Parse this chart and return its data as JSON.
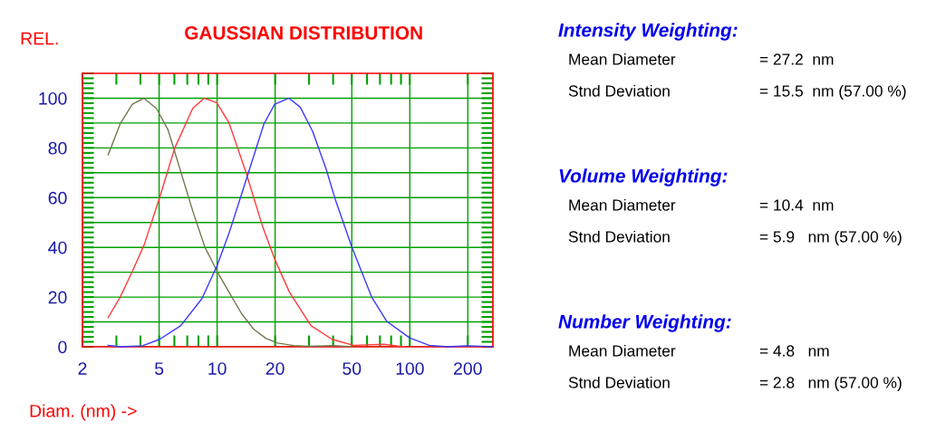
{
  "chart_data": [
    {
      "type": "line",
      "title": "GAUSSIAN DISTRIBUTION",
      "ylabel": "REL.",
      "xlabel": "Diam. (nm) ->",
      "log": "x",
      "grid": true,
      "marker": "none",
      "line_style": "solid",
      "xlim": [
        2,
        270
      ],
      "xticks": [
        2,
        5,
        10,
        20,
        50,
        100,
        200
      ],
      "ylim": [
        0,
        110
      ],
      "yticks": [
        0,
        {
          "value": 10,
          "label": null
        },
        20,
        {
          "value": 30,
          "label": null
        },
        40,
        {
          "value": 50,
          "label": null
        },
        60,
        {
          "value": 70,
          "label": null
        },
        80,
        {
          "value": 90,
          "label": null
        },
        100
      ],
      "series": [
        {
          "color": "#76764e",
          "x": [
            2.72,
            3.14,
            3.63,
            4.17,
            4.85,
            5.56,
            7.48,
            8.65,
            10,
            11.56,
            13.4,
            15.5,
            17.9,
            20.6,
            25,
            30,
            40,
            50
          ],
          "values": [
            77.2,
            89.7,
            97.6,
            100,
            95.8,
            87.3,
            54.5,
            40,
            30.3,
            21.8,
            13.3,
            7.0,
            3.4,
            1.5,
            0.5,
            0.2,
            0.5,
            0
          ]
        },
        {
          "color": "#ff3a3a",
          "x": [
            2.72,
            3.14,
            3.63,
            4.19,
            5.03,
            6.03,
            7.48,
            8.57,
            9.95,
            11.5,
            14.1,
            17.2,
            19.9,
            23.8,
            30.7,
            39.5,
            50.9,
            73.3,
            94
          ],
          "values": [
            11.8,
            20,
            30.3,
            41.2,
            60,
            80,
            96,
            100,
            98.2,
            90.3,
            70.3,
            48.5,
            35.2,
            21.8,
            8.5,
            3.0,
            0.6,
            1.0,
            0
          ]
        },
        {
          "color": "#3a3aff",
          "x": [
            2.72,
            3.14,
            4.1,
            5.03,
            6.48,
            8.34,
            10,
            11.56,
            14.4,
            17.5,
            19.9,
            23.6,
            27.0,
            31.3,
            36.8,
            41.0,
            50.1,
            63.4,
            75.8,
            99.7,
            126,
            156,
            200,
            269
          ],
          "values": [
            0.6,
            0,
            0.4,
            3,
            8.5,
            19.4,
            32.7,
            46,
            69,
            89.7,
            97.6,
            100,
            96.4,
            86.7,
            71.5,
            59.4,
            40,
            20,
            10.3,
            3.6,
            0.6,
            0,
            0.4,
            0
          ]
        }
      ]
    },
    {
      "type": "other",
      "annotations": [
        "Intensity Weighting:",
        "Mean Diameter",
        "= 27.2  nm",
        "Stnd Deviation",
        "= 15.5  nm (57.00 %)",
        "Volume Weighting:",
        "Mean Diameter",
        "= 10.4  nm",
        "Stnd Deviation",
        "= 5.9   nm (57.00 %)",
        "Number Weighting:",
        "Mean Diameter",
        "= 4.8   nm",
        "Stnd Deviation",
        "= 2.8   nm (57.00 %)"
      ]
    }
  ]
}
